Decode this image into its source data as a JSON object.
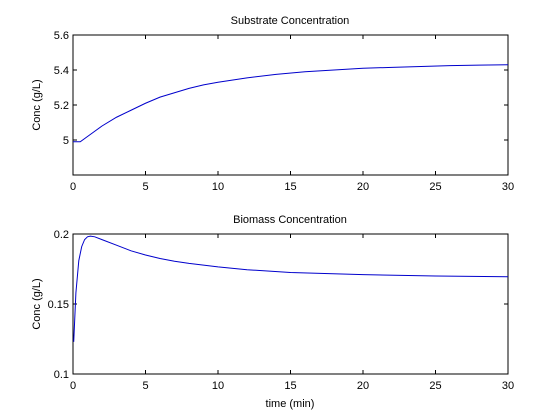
{
  "chart_data": [
    {
      "type": "line",
      "title": "Substrate Concentration",
      "xlabel": "",
      "ylabel": "Conc (g/L)",
      "xlim": [
        0,
        30
      ],
      "ylim": [
        4.8,
        5.6
      ],
      "xticks": [
        "0",
        "5",
        "10",
        "15",
        "20",
        "25",
        "30"
      ],
      "xtick_values": [
        0,
        5,
        10,
        15,
        20,
        25,
        30
      ],
      "yticks": [
        "5",
        "5.2",
        "5.4",
        "5.6"
      ],
      "ytick_values": [
        5.0,
        5.2,
        5.4,
        5.6
      ],
      "grid": false,
      "line_color": "#0000cc",
      "series": [
        {
          "x": [
            0,
            0.5,
            1,
            1.5,
            2,
            3,
            4,
            5,
            6,
            7,
            8,
            9,
            10,
            12,
            14,
            16,
            18,
            20,
            22,
            24,
            26,
            28,
            30
          ],
          "y": [
            4.99,
            4.99,
            5.02,
            5.05,
            5.08,
            5.13,
            5.17,
            5.21,
            5.245,
            5.27,
            5.295,
            5.315,
            5.33,
            5.355,
            5.375,
            5.39,
            5.4,
            5.41,
            5.415,
            5.42,
            5.425,
            5.428,
            5.43
          ]
        }
      ]
    },
    {
      "type": "line",
      "title": "Biomass Concentration",
      "xlabel": "time (min)",
      "ylabel": "Conc (g/L)",
      "xlim": [
        0,
        30
      ],
      "ylim": [
        0.1,
        0.2
      ],
      "xticks": [
        "0",
        "5",
        "10",
        "15",
        "20",
        "25",
        "30"
      ],
      "xtick_values": [
        0,
        5,
        10,
        15,
        20,
        25,
        30
      ],
      "yticks": [
        "0.1",
        "0.15",
        "0.2"
      ],
      "ytick_values": [
        0.1,
        0.15,
        0.2
      ],
      "grid": false,
      "line_color": "#0000cc",
      "series": [
        {
          "x": [
            0.05,
            0.2,
            0.4,
            0.6,
            0.8,
            1,
            1.2,
            1.5,
            2,
            3,
            4,
            5,
            6,
            7,
            8,
            10,
            12,
            15,
            20,
            25,
            30
          ],
          "y": [
            0.123,
            0.158,
            0.181,
            0.191,
            0.196,
            0.198,
            0.1985,
            0.198,
            0.196,
            0.192,
            0.188,
            0.185,
            0.1825,
            0.1805,
            0.179,
            0.1765,
            0.1745,
            0.1725,
            0.171,
            0.17,
            0.1695
          ]
        }
      ]
    }
  ]
}
